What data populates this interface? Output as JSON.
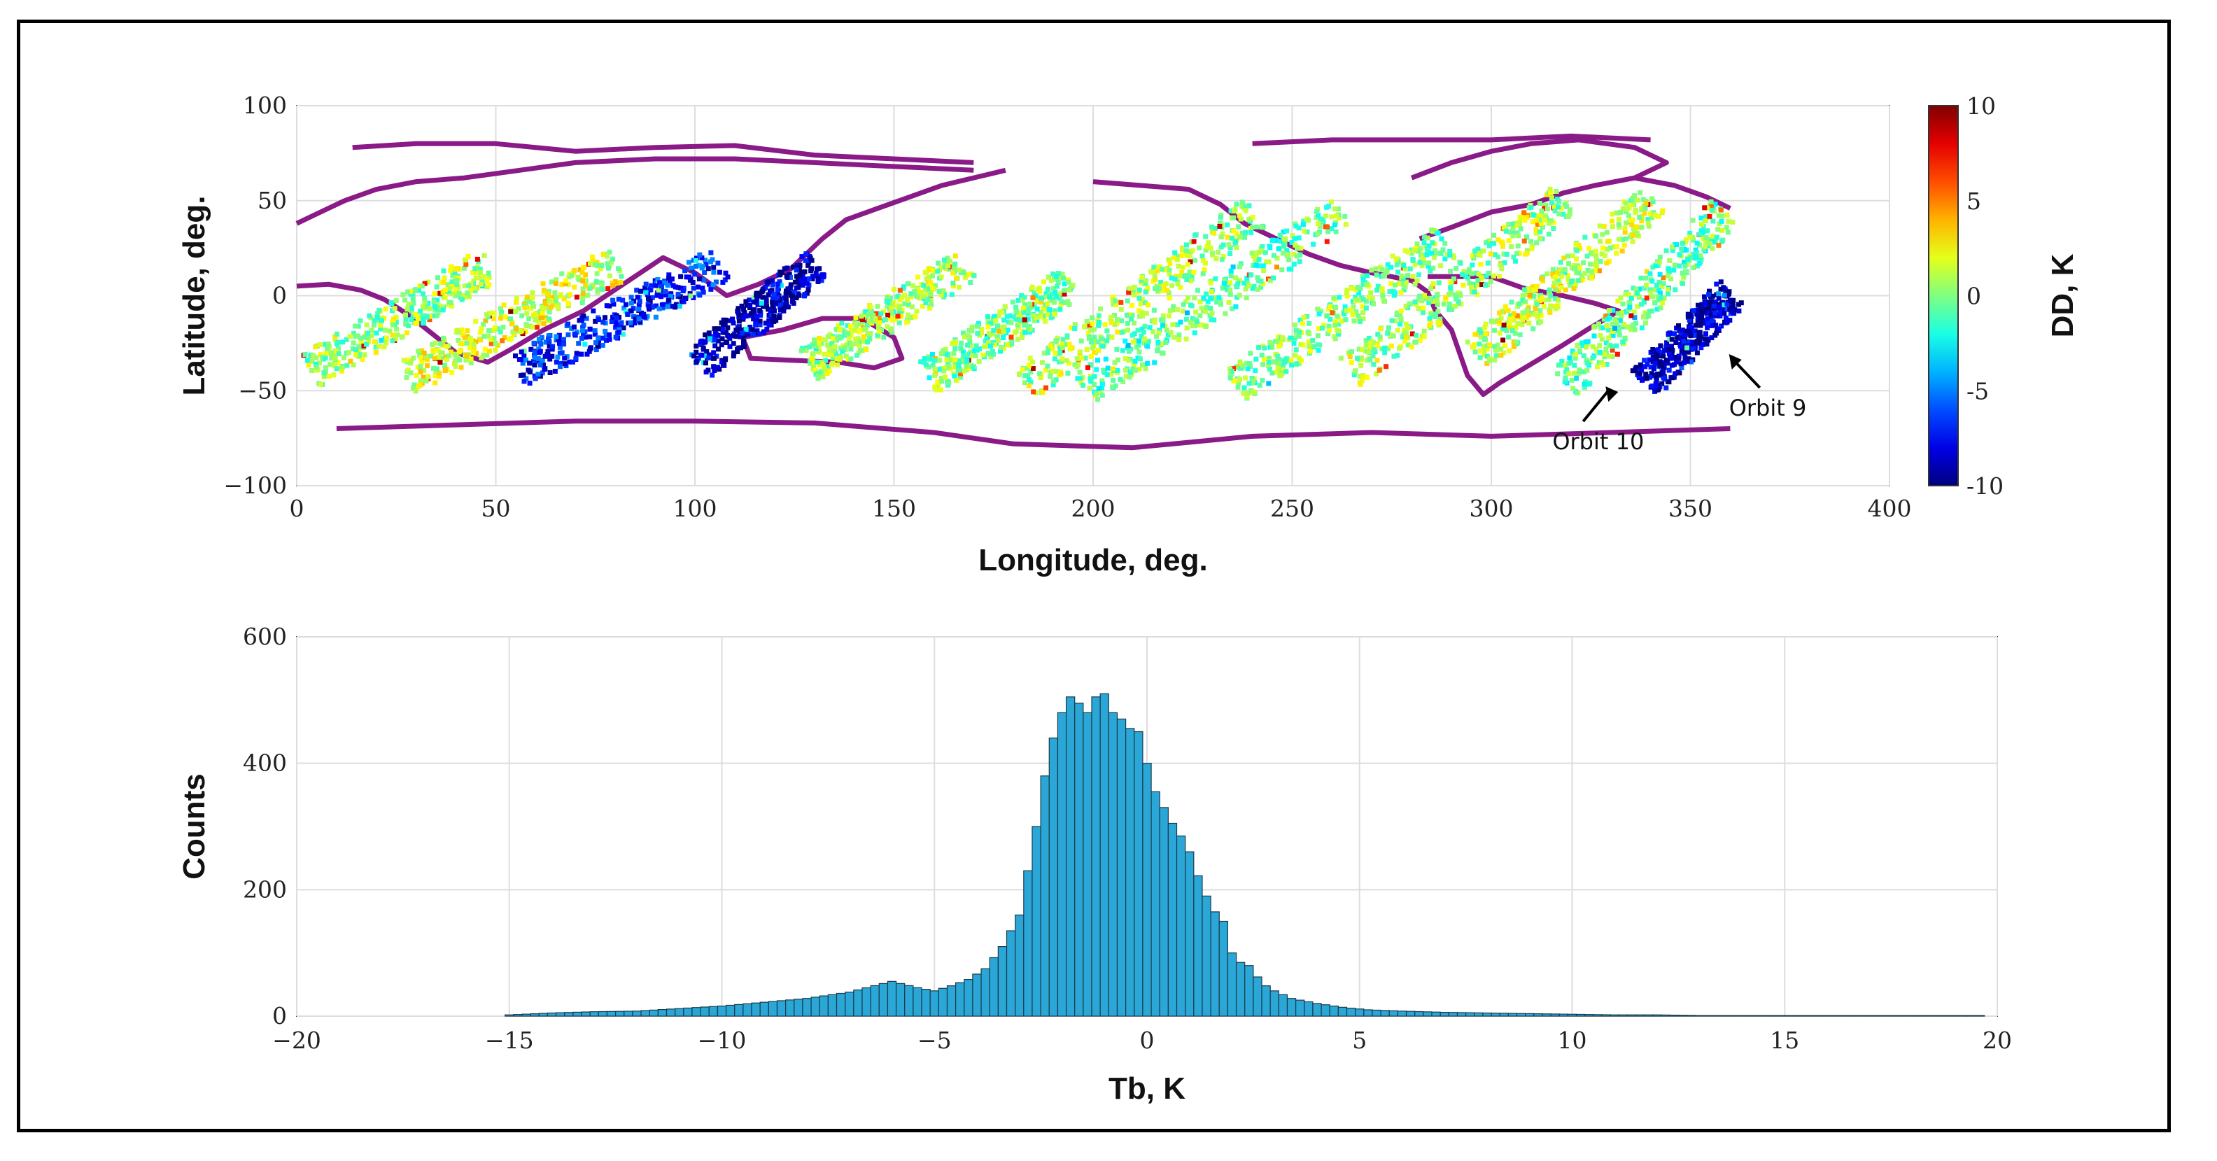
{
  "chart_data": [
    {
      "type": "scatter",
      "xlabel": "Longitude, deg.",
      "ylabel": "Latitude, deg.",
      "xlim": [
        0,
        400
      ],
      "ylim": [
        -100,
        100
      ],
      "xticks": [
        0,
        50,
        100,
        150,
        200,
        250,
        300,
        350,
        400
      ],
      "yticks": [
        -100,
        -50,
        0,
        50,
        100
      ],
      "grid": true,
      "colorbar": {
        "label": "DD, K",
        "range": [
          -10,
          10
        ],
        "ticks": [
          10,
          5,
          0,
          -5,
          -10
        ],
        "colormap": "jet"
      },
      "coastline_color": "#8B1A89",
      "swaths": [
        {
          "lon0": 3,
          "lat0": -38,
          "lon1": 48,
          "lat1": 18,
          "dd": 0.5
        },
        {
          "lon0": 27,
          "lat0": -42,
          "lon1": 80,
          "lat1": 18,
          "dd": 1.5
        },
        {
          "lon0": 55,
          "lat0": -38,
          "lon1": 106,
          "lat1": 18,
          "dd": -7
        },
        {
          "lon0": 100,
          "lat0": -35,
          "lon1": 130,
          "lat1": 18,
          "dd": -9
        },
        {
          "lon0": 128,
          "lat0": -35,
          "lon1": 168,
          "lat1": 18,
          "dd": 0.5
        },
        {
          "lon0": 158,
          "lat0": -42,
          "lon1": 194,
          "lat1": 8,
          "dd": 0
        },
        {
          "lon0": 182,
          "lat0": -46,
          "lon1": 240,
          "lat1": 45,
          "dd": 0.5
        },
        {
          "lon0": 197,
          "lat0": -48,
          "lon1": 262,
          "lat1": 45,
          "dd": -0.5
        },
        {
          "lon0": 235,
          "lat0": -46,
          "lon1": 288,
          "lat1": 30,
          "dd": 0
        },
        {
          "lon0": 264,
          "lat0": -40,
          "lon1": 318,
          "lat1": 52,
          "dd": 0.5
        },
        {
          "lon0": 296,
          "lat0": -30,
          "lon1": 340,
          "lat1": 52,
          "dd": 1
        },
        {
          "lon0": 318,
          "lat0": -45,
          "lon1": 358,
          "lat1": 45,
          "dd": -0.5
        },
        {
          "lon0": 338,
          "lat0": -45,
          "lon1": 360,
          "lat1": 3,
          "dd": -9
        }
      ],
      "annotations": [
        {
          "text": "Orbit 9",
          "lon": 359,
          "lat": -30
        },
        {
          "text": "Orbit 10",
          "lon": 328,
          "lat": -47
        }
      ]
    },
    {
      "type": "bar",
      "xlabel": "Tb, K",
      "ylabel": "Counts",
      "xlim": [
        -20,
        20
      ],
      "ylim": [
        0,
        600
      ],
      "xticks": [
        -20,
        -15,
        -10,
        -5,
        0,
        5,
        10,
        15,
        20
      ],
      "yticks": [
        0,
        200,
        400,
        600
      ],
      "grid": true,
      "bar_color": "#2AA7D6",
      "bin_width": 0.2,
      "x": [
        -15.0,
        -14.0,
        -13.0,
        -12.0,
        -11.0,
        -10.0,
        -9.0,
        -8.0,
        -7.0,
        -6.0,
        -5.4,
        -5.0,
        -4.6,
        -4.2,
        -3.8,
        -3.4,
        -3.0,
        -2.8,
        -2.6,
        -2.4,
        -2.2,
        -2.0,
        -1.8,
        -1.6,
        -1.4,
        -1.2,
        -1.0,
        -0.8,
        -0.6,
        -0.4,
        -0.2,
        0.0,
        0.2,
        0.4,
        0.6,
        0.8,
        1.0,
        1.2,
        1.4,
        1.6,
        1.8,
        2.0,
        2.2,
        2.4,
        2.6,
        2.8,
        3.0,
        3.4,
        4.0,
        4.6,
        5.2,
        6.0,
        7.0,
        8.0,
        9.0,
        10.0,
        11.0,
        12.0,
        13.0,
        14.0,
        15.0,
        16.0,
        17.0,
        18.0,
        19.0,
        19.6
      ],
      "values": [
        2,
        5,
        7,
        8,
        12,
        16,
        22,
        28,
        38,
        55,
        45,
        40,
        48,
        58,
        75,
        110,
        160,
        230,
        300,
        380,
        440,
        480,
        505,
        495,
        480,
        505,
        510,
        480,
        470,
        455,
        450,
        400,
        355,
        330,
        305,
        285,
        260,
        222,
        190,
        165,
        150,
        100,
        85,
        80,
        62,
        48,
        40,
        28,
        20,
        14,
        10,
        8,
        6,
        5,
        4,
        3,
        2,
        2,
        1,
        1,
        1,
        1,
        1,
        1,
        1,
        1
      ]
    }
  ]
}
